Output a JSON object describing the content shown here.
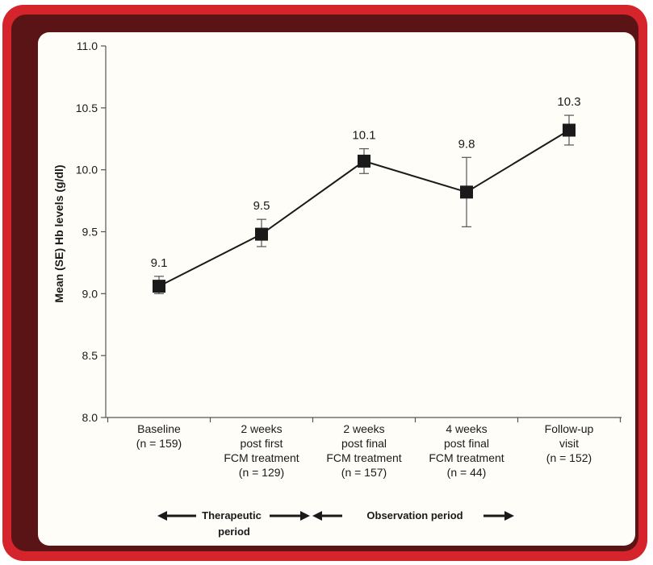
{
  "chart_data": {
    "type": "line",
    "ylabel": "Mean (SE) Hb levels (g/dl)",
    "ylim": [
      8.0,
      11.0
    ],
    "yticks": [
      "8.0",
      "8.5",
      "9.0",
      "9.5",
      "10.0",
      "10.5",
      "11.0"
    ],
    "categories": [
      [
        "Baseline",
        "(n = 159)"
      ],
      [
        "2 weeks",
        "post first",
        "FCM treatment",
        "(n = 129)"
      ],
      [
        "2 weeks",
        "post final",
        "FCM treatment",
        "(n = 157)"
      ],
      [
        "4 weeks",
        "post final",
        "FCM treatment",
        "(n = 44)"
      ],
      [
        "Follow-up",
        "visit",
        "(n = 152)"
      ]
    ],
    "values": [
      9.06,
      9.48,
      10.07,
      9.82,
      10.32
    ],
    "errors": [
      [
        9.0,
        9.14
      ],
      [
        9.38,
        9.6
      ],
      [
        9.97,
        10.17
      ],
      [
        9.54,
        10.1
      ],
      [
        10.2,
        10.44
      ]
    ],
    "data_labels": [
      "9.1",
      "9.5",
      "10.1",
      "9.8",
      "10.3"
    ],
    "annotations": {
      "therapeutic": [
        "Therapeutic",
        "period"
      ],
      "observation": "Observation period"
    }
  },
  "colors": {
    "frame": "#d6242c",
    "frame_inner": "#5b1416",
    "panel": "#fffdf8",
    "series": "#1a1a1a"
  }
}
